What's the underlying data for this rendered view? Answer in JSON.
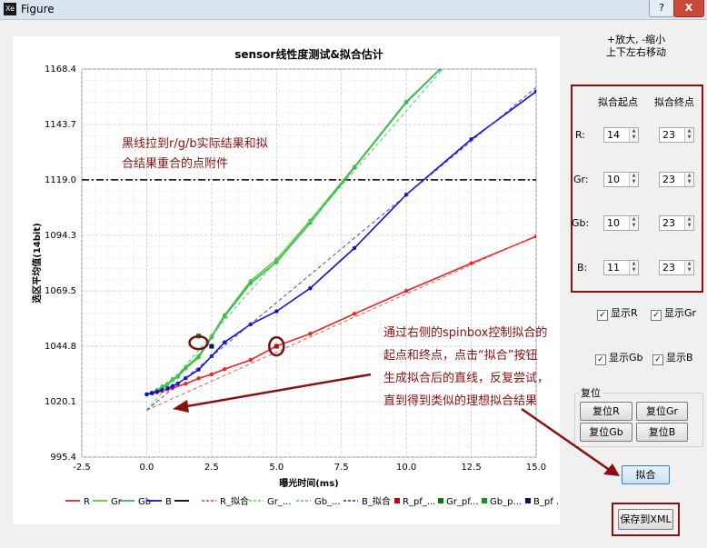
{
  "window": {
    "title": "Figure",
    "icon_text": "Xe",
    "help_label": "?",
    "close_label": "X"
  },
  "hint": {
    "line1": "+放大, -缩小",
    "line2": "上下左右移动"
  },
  "fit_panel": {
    "start_header": "拟合起点",
    "end_header": "拟合终点",
    "rows": [
      {
        "label": "R:",
        "start": "14",
        "end": "23"
      },
      {
        "label": "Gr:",
        "start": "10",
        "end": "23"
      },
      {
        "label": "Gb:",
        "start": "10",
        "end": "23"
      },
      {
        "label": "B:",
        "start": "11",
        "end": "23"
      }
    ]
  },
  "checkboxes": [
    {
      "label": "显示R",
      "checked": true
    },
    {
      "label": "显示Gr",
      "checked": true
    },
    {
      "label": "显示Gb",
      "checked": true
    },
    {
      "label": "显示B",
      "checked": true
    }
  ],
  "reset": {
    "title": "复位",
    "buttons": [
      "复位R",
      "复位Gr",
      "复位Gb",
      "复位B"
    ]
  },
  "fit_button": "拟合",
  "save_button": "保存到XML",
  "annotations": {
    "top": [
      "黑线拉到r/g/b实际结果和拟",
      "合结果重合的点附件"
    ],
    "bottom": [
      "通过右侧的spinbox控制拟合的",
      "起点和终点，点击“拟合”按钮",
      "生成拟合后的直线，反复尝试，",
      "直到得到类似的理想拟合结果"
    ]
  },
  "chart_data": {
    "type": "line",
    "title": "sensor线性度测试&拟合估计",
    "xlabel": "曝光时间(ms)",
    "ylabel": "选区平均值(14bit)",
    "xlim": [
      -2.5,
      15.0
    ],
    "ylim": [
      995.4,
      1168.4
    ],
    "xticks": [
      "-2.5",
      "0.0",
      "2.5",
      "5.0",
      "7.5",
      "10.0",
      "12.5",
      "15.0"
    ],
    "yticks": [
      "995.4",
      "1020.1",
      "1044.8",
      "1069.5",
      "1094.3",
      "1119.0",
      "1143.7",
      "1168.4"
    ],
    "grid": true,
    "legend_position": "bottom",
    "hline": {
      "y": 1119.0,
      "color": "#000000"
    },
    "series": [
      {
        "name": "R",
        "color": "#ee2222",
        "x": [
          0,
          0.2,
          0.4,
          0.6,
          0.8,
          1.0,
          1.5,
          2.0,
          2.5,
          3.0,
          4.0,
          5.0,
          6.3,
          8.0,
          10.0,
          12.5,
          15.0
        ],
        "y": [
          1023.4,
          1023.8,
          1024.3,
          1024.9,
          1025.6,
          1026.2,
          1028.1,
          1030.5,
          1032.3,
          1034.6,
          1038.7,
          1044.9,
          1050.4,
          1059.3,
          1069.5,
          1081.8,
          1093.8
        ]
      },
      {
        "name": "Gr",
        "color": "#55cc33",
        "x": [
          0,
          0.2,
          0.4,
          0.6,
          0.8,
          1.0,
          1.2,
          1.5,
          2.0,
          2.5,
          3.0,
          4.0,
          5.0,
          6.3,
          8.0,
          10.0,
          11.3
        ],
        "y": [
          1023.4,
          1024.3,
          1025.3,
          1026.9,
          1028.1,
          1030.2,
          1031.8,
          1035.5,
          1040.5,
          1049.4,
          1058.7,
          1073.9,
          1083.5,
          1100.9,
          1124.8,
          1153.9,
          1168.4
        ]
      },
      {
        "name": "Gb",
        "color": "#33bb55",
        "x": [
          0,
          0.2,
          0.4,
          0.6,
          0.8,
          1.0,
          1.2,
          1.5,
          2.0,
          2.5,
          3.0,
          4.0,
          5.0,
          6.3,
          8.0,
          10.0,
          11.3
        ],
        "y": [
          1023.4,
          1024.2,
          1025.0,
          1026.4,
          1027.7,
          1029.7,
          1031.2,
          1035.0,
          1039.9,
          1048.8,
          1058.1,
          1072.9,
          1082.3,
          1099.8,
          1124.5,
          1153.5,
          1168.4
        ]
      },
      {
        "name": "B",
        "color": "#1111cc",
        "x": [
          0,
          0.2,
          0.4,
          0.6,
          0.8,
          1.0,
          1.2,
          1.5,
          2.0,
          2.5,
          3.0,
          4.0,
          5.0,
          6.3,
          8.0,
          10.0,
          12.5,
          15.0
        ],
        "y": [
          1023.4,
          1023.9,
          1024.6,
          1025.3,
          1026.1,
          1027.1,
          1028.2,
          1030.6,
          1034.4,
          1040.4,
          1046.6,
          1054.6,
          1060.4,
          1070.7,
          1088.6,
          1112.4,
          1137.1,
          1158.4
        ]
      },
      {
        "name": "R_拟合",
        "color": "#ee5555",
        "dashed": true,
        "x": [
          0,
          15.0
        ],
        "y": [
          1016.3,
          1094.1
        ]
      },
      {
        "name": "Gr_拟合",
        "color": "#88dd55",
        "dashed": true,
        "x": [
          0,
          11.4
        ],
        "y": [
          1016.3,
          1168.4
        ]
      },
      {
        "name": "Gb_拟合",
        "color": "#66cc88",
        "dashed": true,
        "x": [
          0,
          11.4
        ],
        "y": [
          1016.3,
          1168.4
        ]
      },
      {
        "name": "B_拟合",
        "color": "#4444dd",
        "dashed": true,
        "x": [
          0,
          15.0
        ],
        "y": [
          1016.3,
          1160.2
        ]
      }
    ],
    "fit_points": [
      {
        "name": "R_pf_...",
        "color": "#aa1111",
        "x": 5.0,
        "y": 1044.8
      },
      {
        "name": "Gr_pf...",
        "color": "#117711",
        "x": 2.0,
        "y": 1049.4
      },
      {
        "name": "Gb_p...",
        "color": "#119911",
        "x": 2.0,
        "y": 1049.4
      },
      {
        "name": "B_pf ...",
        "color": "#111166",
        "x": 2.5,
        "y": 1044.8
      }
    ],
    "legend": [
      "R",
      "Gr",
      "Gb",
      "B",
      "",
      "R_拟合",
      "Gr_...",
      "Gb_...",
      "B_拟合",
      "R_pf_...",
      "Gr_pf...",
      "Gb_p...",
      "B_pf ..."
    ]
  }
}
